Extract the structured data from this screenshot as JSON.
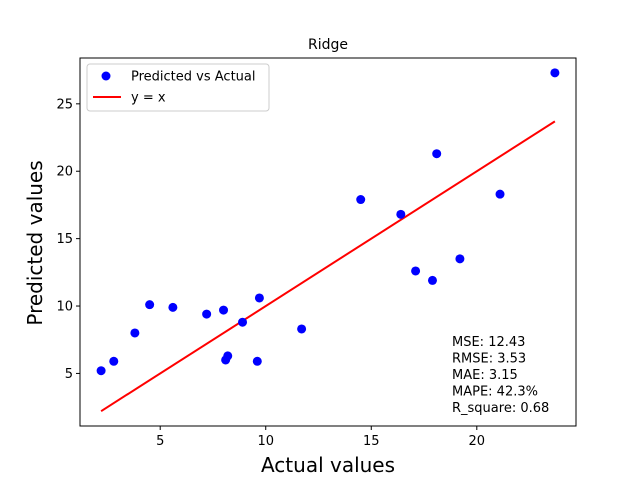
{
  "chart_data": {
    "type": "scatter",
    "title": "Ridge",
    "xlabel": "Actual values",
    "ylabel": "Predicted values",
    "xlim": [
      1.2,
      24.7
    ],
    "ylim": [
      1.1,
      28.4
    ],
    "xticks": [
      5,
      10,
      15,
      20
    ],
    "yticks": [
      5,
      10,
      15,
      20,
      25
    ],
    "grid": false,
    "legend_position": "upper-left",
    "series": [
      {
        "name": "Predicted vs Actual",
        "kind": "scatter",
        "color": "#0000ff",
        "points": [
          {
            "x": 2.2,
            "y": 5.2
          },
          {
            "x": 2.8,
            "y": 5.9
          },
          {
            "x": 3.8,
            "y": 8.0
          },
          {
            "x": 4.5,
            "y": 10.1
          },
          {
            "x": 5.6,
            "y": 9.9
          },
          {
            "x": 7.2,
            "y": 9.4
          },
          {
            "x": 8.0,
            "y": 9.7
          },
          {
            "x": 8.1,
            "y": 6.0
          },
          {
            "x": 8.2,
            "y": 6.3
          },
          {
            "x": 8.9,
            "y": 8.8
          },
          {
            "x": 9.6,
            "y": 5.9
          },
          {
            "x": 9.7,
            "y": 10.6
          },
          {
            "x": 11.7,
            "y": 8.3
          },
          {
            "x": 14.5,
            "y": 17.9
          },
          {
            "x": 16.4,
            "y": 16.8
          },
          {
            "x": 17.1,
            "y": 12.6
          },
          {
            "x": 17.9,
            "y": 11.9
          },
          {
            "x": 18.1,
            "y": 21.3
          },
          {
            "x": 19.2,
            "y": 13.5
          },
          {
            "x": 21.1,
            "y": 18.3
          },
          {
            "x": 23.7,
            "y": 27.3
          }
        ]
      },
      {
        "name": "y = x",
        "kind": "line",
        "color": "#ff0000",
        "points": [
          {
            "x": 2.2,
            "y": 2.2
          },
          {
            "x": 23.7,
            "y": 23.7
          }
        ]
      }
    ],
    "annotations": [
      "MSE: 12.43",
      "RMSE: 3.53",
      "MAE: 3.15",
      "MAPE: 42.3%",
      "R_square: 0.68"
    ]
  }
}
